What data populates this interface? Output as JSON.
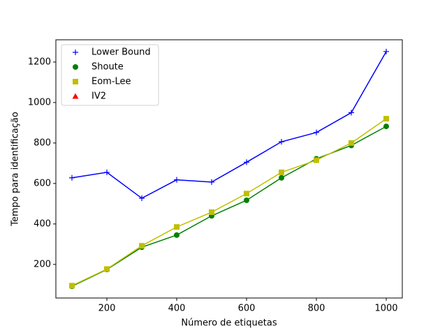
{
  "chart_data": {
    "type": "line",
    "xlabel": "Número de etiquetas",
    "ylabel": "Tempo para identificação",
    "x": [
      100,
      200,
      300,
      400,
      500,
      600,
      700,
      800,
      900,
      1000
    ],
    "series": [
      {
        "name": "Lower Bound",
        "color": "#0000ff",
        "marker": "plus",
        "values": [
          628,
          655,
          527,
          618,
          607,
          705,
          806,
          852,
          950,
          1252
        ]
      },
      {
        "name": "Shoute",
        "color": "#008000",
        "marker": "circle",
        "values": [
          92,
          175,
          285,
          345,
          440,
          517,
          628,
          722,
          788,
          882
        ]
      },
      {
        "name": "Eom-Lee",
        "color": "#bfbf00",
        "marker": "square",
        "values": [
          95,
          177,
          292,
          385,
          458,
          550,
          655,
          715,
          800,
          920
        ]
      },
      {
        "name": "IV2",
        "color": "#ff0000",
        "marker": "triangle",
        "values": [
          null,
          null,
          null,
          null,
          null,
          null,
          null,
          null,
          null,
          null
        ]
      }
    ],
    "xlim": [
      54,
      1046
    ],
    "ylim": [
      34,
      1310
    ],
    "xticks": [
      200,
      400,
      600,
      800,
      1000
    ],
    "yticks": [
      200,
      400,
      600,
      800,
      1000,
      1200
    ],
    "legend": "upper left"
  }
}
